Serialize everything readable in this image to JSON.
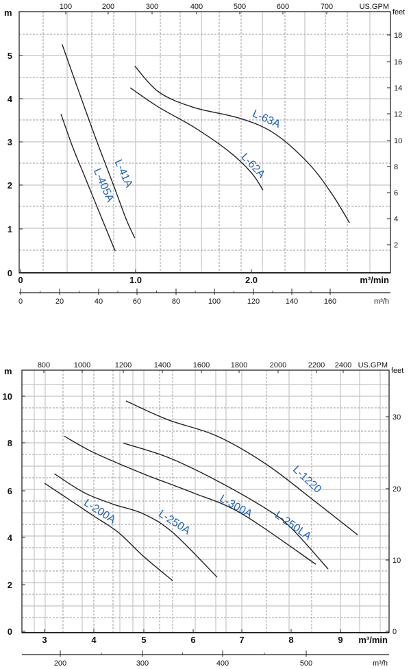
{
  "chart_data": [
    {
      "type": "line",
      "left_unit": "m",
      "right_unit": "feet",
      "top_unit": "US.GPM",
      "bottom_unit": "m³/min",
      "sub_unit": "m³/h",
      "xlim": [
        0,
        2.6
      ],
      "ylim": [
        0,
        5.6
      ],
      "left_ticks": [
        "0",
        "1",
        "2",
        "3",
        "4",
        "5"
      ],
      "right_ticks": [
        "2",
        "4",
        "6",
        "8",
        "10",
        "12",
        "14",
        "16",
        "18"
      ],
      "top_ticks": [
        "100",
        "200",
        "300",
        "400",
        "500",
        "600",
        "700"
      ],
      "bottom_ticks": [
        "0",
        "1.0",
        "2.0"
      ],
      "sub_ticks": [
        "0",
        "20",
        "40",
        "60",
        "80",
        "100",
        "120",
        "140",
        "160"
      ],
      "series": [
        {
          "name": "L-405A",
          "x": [
            0.35,
            0.45,
            0.55,
            0.65,
            0.75,
            0.82
          ],
          "y": [
            3.65,
            2.9,
            2.25,
            1.6,
            0.95,
            0.5
          ]
        },
        {
          "name": "L-41A",
          "x": [
            0.36,
            0.5,
            0.65,
            0.8,
            0.92,
            0.99
          ],
          "y": [
            5.25,
            4.2,
            3.1,
            2.05,
            1.2,
            0.8
          ]
        },
        {
          "name": "L-62A",
          "x": [
            0.95,
            1.2,
            1.5,
            1.8,
            2.0,
            2.1
          ],
          "y": [
            4.25,
            3.8,
            3.35,
            2.8,
            2.3,
            1.9
          ]
        },
        {
          "name": "L-63A",
          "x": [
            0.99,
            1.2,
            1.5,
            1.9,
            2.2,
            2.5,
            2.7,
            2.85
          ],
          "y": [
            4.75,
            4.15,
            3.8,
            3.55,
            3.2,
            2.5,
            1.8,
            1.15
          ]
        }
      ]
    },
    {
      "type": "line",
      "left_unit": "m",
      "right_unit": "feet",
      "top_unit": "US.GPM",
      "bottom_unit": "m³/min",
      "sub_unit": "m³/h",
      "xlim": [
        2.6,
        9.6
      ],
      "ylim": [
        0,
        11
      ],
      "left_ticks": [
        "0",
        "2",
        "4",
        "6",
        "8",
        "10"
      ],
      "right_ticks": [
        "0",
        "10",
        "20",
        "30"
      ],
      "top_ticks": [
        "800",
        "1000",
        "1200",
        "1400",
        "1600",
        "1800",
        "2000",
        "2200",
        "2400"
      ],
      "bottom_ticks": [
        "3",
        "4",
        "5",
        "6",
        "7",
        "8",
        "9"
      ],
      "sub_ticks": [
        "200",
        "300",
        "400",
        "500"
      ],
      "series": [
        {
          "name": "L-200A",
          "x": [
            3.0,
            3.5,
            4.0,
            4.5,
            5.0,
            5.6
          ],
          "y": [
            6.3,
            5.6,
            4.9,
            4.2,
            3.2,
            2.15
          ]
        },
        {
          "name": "L-250A",
          "x": [
            3.2,
            3.8,
            4.4,
            5.0,
            5.6,
            6.5
          ],
          "y": [
            6.7,
            5.9,
            5.4,
            5.0,
            4.2,
            2.3
          ]
        },
        {
          "name": "L-300A",
          "x": [
            3.4,
            4.0,
            5.0,
            6.0,
            7.0,
            8.5
          ],
          "y": [
            8.3,
            7.6,
            6.7,
            5.9,
            5.0,
            2.85
          ]
        },
        {
          "name": "L-250LA",
          "x": [
            4.6,
            5.5,
            6.5,
            7.5,
            8.0,
            8.75
          ],
          "y": [
            8.0,
            7.4,
            6.4,
            5.2,
            4.4,
            2.65
          ]
        },
        {
          "name": "L-1220",
          "x": [
            4.65,
            5.5,
            6.5,
            7.5,
            8.5,
            9.35
          ],
          "y": [
            9.8,
            9.0,
            8.3,
            7.1,
            5.5,
            4.1
          ]
        }
      ]
    }
  ]
}
